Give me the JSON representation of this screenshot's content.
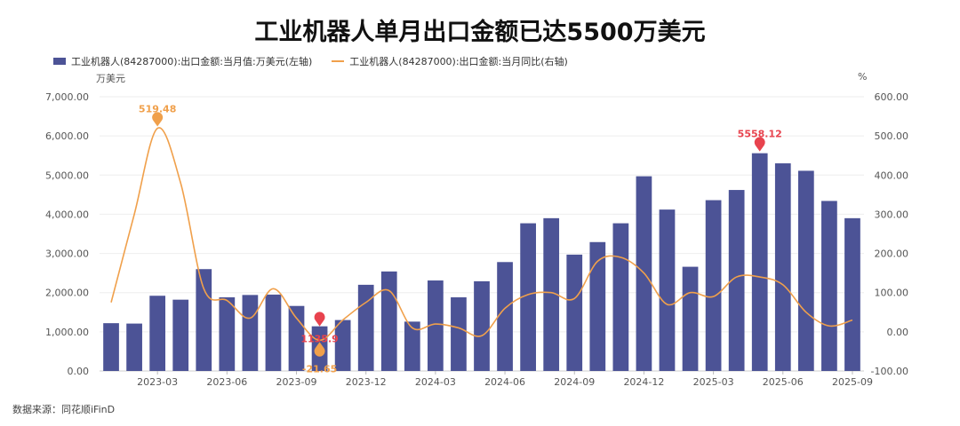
{
  "title": "工业机器人单月出口金额已达5500万美元",
  "source": "数据来源：同花顺iFinD",
  "colors": {
    "bar": "#4c5396",
    "line": "#f0a04b",
    "max_marker": "#e8434e",
    "min_marker": "#f0a04b"
  },
  "chart_data": {
    "type": "bar",
    "categories": [
      "2023-01",
      "2023-02",
      "2023-03",
      "2023-04",
      "2023-05",
      "2023-06",
      "2023-07",
      "2023-08",
      "2023-09",
      "2023-10",
      "2023-11",
      "2023-12",
      "2024-01",
      "2024-02",
      "2024-03",
      "2024-04",
      "2024-05",
      "2024-06",
      "2024-07",
      "2024-08",
      "2024-09",
      "2024-10",
      "2024-11",
      "2024-12",
      "2025-01",
      "2025-02",
      "2025-03",
      "2025-04",
      "2025-05",
      "2025-06",
      "2025-07",
      "2025-08",
      "2025-09"
    ],
    "x_tick_labels": [
      "2023-03",
      "2023-06",
      "2023-09",
      "2023-12",
      "2024-03",
      "2024-06",
      "2024-09",
      "2024-12",
      "2025-03",
      "2025-06",
      "2025-09"
    ],
    "series": [
      {
        "name": "工业机器人(84287000):出口金额:当月值:万美元(左轴)",
        "type": "bar",
        "axis": "left",
        "values": [
          1220,
          1210,
          1920,
          1820,
          2600,
          1880,
          1940,
          1950,
          1660,
          1140,
          1300,
          2200,
          2540,
          1260,
          2310,
          1880,
          2290,
          2780,
          3770,
          3900,
          2970,
          3290,
          3770,
          4970,
          4120,
          2660,
          4360,
          4620,
          5558.12,
          5300,
          5110,
          4340,
          3900
        ]
      },
      {
        "name": "工业机器人(84287000):出口金额:当月同比(右轴)",
        "type": "line",
        "axis": "right",
        "values": [
          75,
          300,
          519.48,
          380,
          110,
          80,
          35,
          110,
          35,
          -21.65,
          30,
          75,
          105,
          10,
          20,
          10,
          -10,
          60,
          95,
          100,
          85,
          180,
          190,
          150,
          70,
          100,
          90,
          140,
          140,
          120,
          50,
          15,
          30
        ]
      }
    ],
    "y_left": {
      "unit": "万美元",
      "min": 0,
      "max": 7000,
      "ticks": [
        "0.00",
        "1,000.00",
        "2,000.00",
        "3,000.00",
        "4,000.00",
        "5,000.00",
        "6,000.00",
        "7,000.00"
      ]
    },
    "y_right": {
      "unit": "%",
      "min": -100,
      "max": 600,
      "ticks": [
        "-100.00",
        "0.00",
        "100.00",
        "200.00",
        "300.00",
        "400.00",
        "500.00",
        "600.00"
      ]
    },
    "annotations": [
      {
        "label": "519.48",
        "series": 1,
        "index": 2,
        "kind": "max"
      },
      {
        "label": "-21.65",
        "series": 1,
        "index": 9,
        "kind": "min"
      },
      {
        "label": "5558.12",
        "series": 0,
        "index": 28,
        "kind": "max"
      },
      {
        "label": "1135.9",
        "series": 0,
        "index": 9,
        "kind": "min"
      }
    ],
    "grid": true,
    "legend_position": "top-left"
  }
}
